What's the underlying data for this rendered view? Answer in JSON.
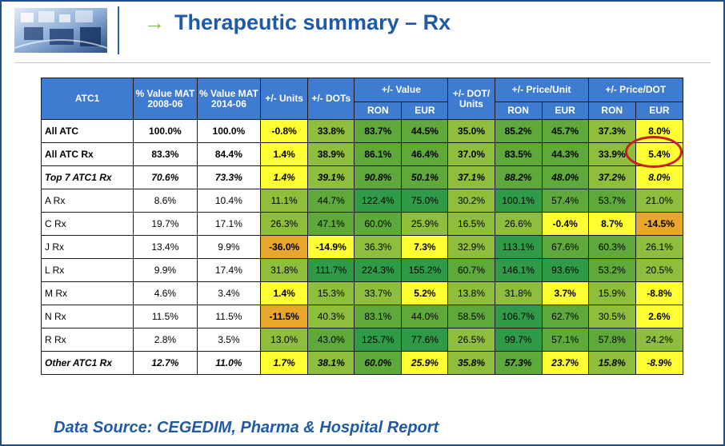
{
  "header": {
    "title": "Therapeutic summary – Rx",
    "arrow_glyph": "→"
  },
  "table": {
    "headers_top": {
      "atc1": "ATC1",
      "value_2008": "% Value MAT 2008-06",
      "value_2014": "% Value MAT 2014-06",
      "units": "+/- Units",
      "dots": "+/- DOTs",
      "value": "+/-  Value",
      "dot_units": "+/- DOT/ Units",
      "price_unit": "+/- Price/Unit",
      "price_dot": "+/- Price/DOT"
    },
    "headers_sub": [
      "RON",
      "EUR",
      "RON",
      "EUR",
      "RON",
      "EUR"
    ],
    "rows": [
      {
        "label": "All ATC",
        "label_style": "b",
        "style": "b",
        "cells": [
          "100.0%",
          "100.0%",
          "-0.8%",
          "33.8%",
          "83.7%",
          "44.5%",
          "35.0%",
          "85.2%",
          "45.7%",
          "37.3%",
          "8.0%"
        ]
      },
      {
        "label": "All ATC Rx",
        "label_style": "b",
        "style": "b",
        "cells": [
          "83.3%",
          "84.4%",
          "1.4%",
          "38.9%",
          "86.1%",
          "46.4%",
          "37.0%",
          "83.5%",
          "44.3%",
          "33.9%",
          "5.4%"
        ]
      },
      {
        "label": "Top 7 ATC1 Rx",
        "label_style": "bi",
        "style": "bi",
        "cells": [
          "70.6%",
          "73.3%",
          "1.4%",
          "39.1%",
          "90.8%",
          "50.1%",
          "37.1%",
          "88.2%",
          "48.0%",
          "37.2%",
          "8.0%"
        ]
      },
      {
        "label": "A Rx",
        "label_style": "",
        "style": "",
        "cells": [
          "8.6%",
          "10.4%",
          "11.1%",
          "44.7%",
          "122.4%",
          "75.0%",
          "30.2%",
          "100.1%",
          "57.4%",
          "53.7%",
          "21.0%"
        ]
      },
      {
        "label": "C Rx",
        "label_style": "",
        "style": "",
        "cells": [
          "19.7%",
          "17.1%",
          "26.3%",
          "47.1%",
          "60.0%",
          "25.9%",
          "16.5%",
          "26.6%",
          "-0.4%",
          "8.7%",
          "-14.5%"
        ]
      },
      {
        "label": "J Rx",
        "label_style": "",
        "style": "",
        "cells": [
          "13.4%",
          "9.9%",
          "-36.0%",
          "-14.9%",
          "36.3%",
          "7.3%",
          "32.9%",
          "113.1%",
          "67.6%",
          "60.3%",
          "26.1%"
        ]
      },
      {
        "label": "L Rx",
        "label_style": "",
        "style": "",
        "cells": [
          "9.9%",
          "17.4%",
          "31.8%",
          "111.7%",
          "224.3%",
          "155.2%",
          "60.7%",
          "146.1%",
          "93.6%",
          "53.2%",
          "20.5%"
        ]
      },
      {
        "label": "M Rx",
        "label_style": "",
        "style": "",
        "cells": [
          "4.6%",
          "3.4%",
          "1.4%",
          "15.3%",
          "33.7%",
          "5.2%",
          "13.8%",
          "31.8%",
          "3.7%",
          "15.9%",
          "-8.8%"
        ]
      },
      {
        "label": "N Rx",
        "label_style": "",
        "style": "",
        "cells": [
          "11.5%",
          "11.5%",
          "-11.5%",
          "40.3%",
          "83.1%",
          "44.0%",
          "58.5%",
          "106.7%",
          "62.7%",
          "30.5%",
          "2.6%"
        ]
      },
      {
        "label": "R Rx",
        "label_style": "",
        "style": "",
        "cells": [
          "2.8%",
          "3.5%",
          "13.0%",
          "43.0%",
          "125.7%",
          "77.6%",
          "26.5%",
          "99.7%",
          "57.1%",
          "57.8%",
          "24.2%"
        ]
      },
      {
        "label": "Other ATC1 Rx",
        "label_style": "bi",
        "style": "bi",
        "cells": [
          "12.7%",
          "11.0%",
          "1.7%",
          "38.1%",
          "60.0%",
          "25.9%",
          "35.8%",
          "57.3%",
          "23.7%",
          "15.8%",
          "-8.9%"
        ]
      }
    ],
    "colors": {
      "header_bg": "#3f7bd0",
      "yellow": "#ffff33",
      "orange": "#e8a62a",
      "light_green": "#8fbe3c",
      "mid_green": "#5fa83c",
      "dark_green": "#2f9a47",
      "callout_red": "#c81e1e"
    }
  },
  "footer": {
    "source": "Data Source: CEGEDIM, Pharma & Hospital Report"
  }
}
